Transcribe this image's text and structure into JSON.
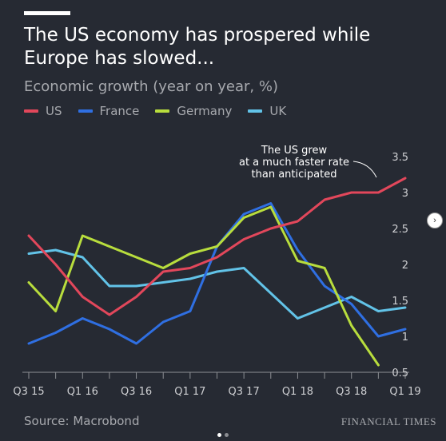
{
  "header": {
    "title": "The US economy has prospered while Europe has slowed...",
    "subtitle": "Economic growth (year on year, %)"
  },
  "footer": {
    "source": "Source: Macrobond",
    "brand": "FINANCIAL TIMES"
  },
  "nav": {
    "next_icon": "chevron-right-icon",
    "dots_active": 0,
    "dots_count": 2
  },
  "chart_data": {
    "type": "line",
    "title": "The US economy has prospered while Europe has slowed...",
    "subtitle": "Economic growth (year on year, %)",
    "x_labels": [
      "Q3 15",
      "Q1 16",
      "Q3 16",
      "Q1 17",
      "Q3 17",
      "Q1 18",
      "Q3 18",
      "Q1 19"
    ],
    "x_quarters": [
      "Q3 15",
      "Q4 15",
      "Q1 16",
      "Q2 16",
      "Q3 16",
      "Q4 16",
      "Q1 17",
      "Q2 17",
      "Q3 17",
      "Q4 17",
      "Q1 18",
      "Q2 18",
      "Q3 18",
      "Q4 18",
      "Q1 19"
    ],
    "ylim": [
      0.5,
      3.5
    ],
    "y_ticks": [
      0.5,
      1,
      1.5,
      2,
      2.5,
      3,
      3.5
    ],
    "y_tick_labels": [
      "0.5",
      "1",
      "1.5",
      "2",
      "2.5",
      "3",
      "3.5"
    ],
    "grid": false,
    "legend_position": "top-left",
    "series": [
      {
        "name": "US",
        "color": "#e2475b",
        "x": [
          "Q3 15",
          "Q4 15",
          "Q1 16",
          "Q2 16",
          "Q3 16",
          "Q4 16",
          "Q1 17",
          "Q2 17",
          "Q3 17",
          "Q4 17",
          "Q1 18",
          "Q2 18",
          "Q3 18",
          "Q4 18",
          "Q1 19"
        ],
        "values": [
          2.4,
          2.0,
          1.55,
          1.3,
          1.55,
          1.9,
          1.95,
          2.1,
          2.35,
          2.5,
          2.6,
          2.9,
          3.0,
          3.0,
          3.2
        ]
      },
      {
        "name": "France",
        "color": "#2f6fe2",
        "x": [
          "Q3 15",
          "Q4 15",
          "Q1 16",
          "Q2 16",
          "Q3 16",
          "Q4 16",
          "Q1 17",
          "Q2 17",
          "Q3 17",
          "Q4 17",
          "Q1 18",
          "Q2 18",
          "Q3 18",
          "Q4 18",
          "Q1 19"
        ],
        "values": [
          0.9,
          1.05,
          1.25,
          1.1,
          0.9,
          1.2,
          1.35,
          2.25,
          2.7,
          2.85,
          2.2,
          1.7,
          1.45,
          1.0,
          1.1
        ]
      },
      {
        "name": "Germany",
        "color": "#b8dd3d",
        "x": [
          "Q3 15",
          "Q4 15",
          "Q1 16",
          "Q2 16",
          "Q3 16",
          "Q4 16",
          "Q1 17",
          "Q2 17",
          "Q3 17",
          "Q4 17",
          "Q1 18",
          "Q2 18",
          "Q3 18",
          "Q4 18"
        ],
        "values": [
          1.75,
          1.35,
          2.4,
          2.25,
          2.1,
          1.95,
          2.15,
          2.25,
          2.65,
          2.8,
          2.05,
          1.95,
          1.15,
          0.6
        ]
      },
      {
        "name": "UK",
        "color": "#62c3e8",
        "x": [
          "Q3 15",
          "Q4 15",
          "Q1 16",
          "Q2 16",
          "Q3 16",
          "Q4 16",
          "Q1 17",
          "Q2 17",
          "Q3 17",
          "Q4 17",
          "Q1 18",
          "Q2 18",
          "Q3 18",
          "Q4 18",
          "Q1 19"
        ],
        "values": [
          2.15,
          2.2,
          2.1,
          1.7,
          1.7,
          1.75,
          1.8,
          1.9,
          1.95,
          1.6,
          1.25,
          1.4,
          1.55,
          1.35,
          1.4
        ]
      }
    ],
    "annotation": {
      "lines": [
        "The US grew",
        "at a much faster rate",
        "than anticipated"
      ]
    }
  }
}
